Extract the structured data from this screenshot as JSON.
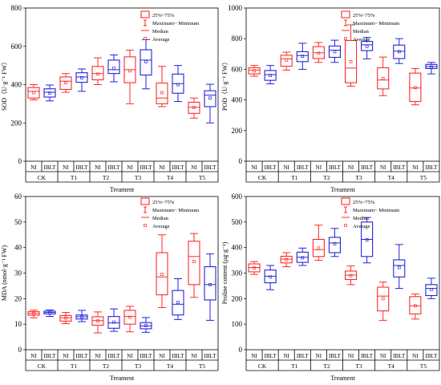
{
  "colors": {
    "NI": "#ff2a2a",
    "IBLT": "#2222dd"
  },
  "chart_data": [
    {
      "type": "box",
      "ylabel": "SOD（U·g⁻¹ FW）",
      "xlabel": "Treament",
      "ylim": [
        0,
        800
      ],
      "yticks": [
        0,
        200,
        400,
        600,
        800
      ],
      "groups": [
        "CK",
        "T1",
        "T2",
        "T3",
        "T4",
        "T5"
      ],
      "series_labels": [
        "NI",
        "IBLT"
      ],
      "legend": [
        "25%~75%",
        "Maximum~ Minimum",
        "Median",
        "Average"
      ],
      "legend_position": "top-left",
      "boxes": [
        {
          "group": "CK",
          "series": "NI",
          "min": 320,
          "q1": 330,
          "median": 365,
          "q3": 385,
          "max": 400,
          "mean": 358
        },
        {
          "group": "CK",
          "series": "IBLT",
          "min": 315,
          "q1": 335,
          "median": 360,
          "q3": 378,
          "max": 398,
          "mean": 356
        },
        {
          "group": "T1",
          "series": "NI",
          "min": 360,
          "q1": 375,
          "median": 418,
          "q3": 440,
          "max": 458,
          "mean": 410
        },
        {
          "group": "T1",
          "series": "IBLT",
          "min": 365,
          "q1": 412,
          "median": 440,
          "q3": 462,
          "max": 482,
          "mean": 436
        },
        {
          "group": "T2",
          "series": "NI",
          "min": 400,
          "q1": 425,
          "median": 458,
          "q3": 495,
          "max": 540,
          "mean": 455
        },
        {
          "group": "T2",
          "series": "IBLT",
          "min": 415,
          "q1": 458,
          "median": 478,
          "q3": 528,
          "max": 555,
          "mean": 485
        },
        {
          "group": "T3",
          "series": "NI",
          "min": 300,
          "q1": 410,
          "median": 478,
          "q3": 545,
          "max": 580,
          "mean": 472
        },
        {
          "group": "T3",
          "series": "IBLT",
          "min": 378,
          "q1": 450,
          "median": 528,
          "q3": 582,
          "max": 635,
          "mean": 520
        },
        {
          "group": "T4",
          "series": "NI",
          "min": 285,
          "q1": 300,
          "median": 330,
          "q3": 408,
          "max": 495,
          "mean": 358
        },
        {
          "group": "T4",
          "series": "IBLT",
          "min": 312,
          "q1": 355,
          "median": 405,
          "q3": 455,
          "max": 500,
          "mean": 400
        },
        {
          "group": "T5",
          "series": "NI",
          "min": 225,
          "q1": 250,
          "median": 282,
          "q3": 308,
          "max": 330,
          "mean": 280
        },
        {
          "group": "T5",
          "series": "IBLT",
          "min": 200,
          "q1": 285,
          "median": 345,
          "q3": 368,
          "max": 402,
          "mean": 330
        }
      ]
    },
    {
      "type": "box",
      "ylabel": "POD（U·g⁻¹ FW）",
      "xlabel": "Treament",
      "ylim": [
        0,
        1000
      ],
      "yticks": [
        0,
        200,
        400,
        600,
        800,
        1000
      ],
      "groups": [
        "CK",
        "T1",
        "T2",
        "T3",
        "T4",
        "T5"
      ],
      "series_labels": [
        "NI",
        "IBLT"
      ],
      "legend": [
        "25%~75%",
        "Maximum~ Minimum",
        "Median",
        "Average"
      ],
      "legend_position": "top-right",
      "boxes": [
        {
          "group": "CK",
          "series": "NI",
          "min": 555,
          "q1": 570,
          "median": 595,
          "q3": 610,
          "max": 625,
          "mean": 590
        },
        {
          "group": "CK",
          "series": "IBLT",
          "min": 505,
          "q1": 528,
          "median": 565,
          "q3": 592,
          "max": 625,
          "mean": 560
        },
        {
          "group": "T1",
          "series": "NI",
          "min": 595,
          "q1": 620,
          "median": 668,
          "q3": 692,
          "max": 712,
          "mean": 660
        },
        {
          "group": "T1",
          "series": "IBLT",
          "min": 600,
          "q1": 650,
          "median": 690,
          "q3": 715,
          "max": 770,
          "mean": 685
        },
        {
          "group": "T2",
          "series": "NI",
          "min": 645,
          "q1": 670,
          "median": 708,
          "q3": 748,
          "max": 775,
          "mean": 705
        },
        {
          "group": "T2",
          "series": "IBLT",
          "min": 645,
          "q1": 678,
          "median": 725,
          "q3": 752,
          "max": 790,
          "mean": 715
        },
        {
          "group": "T3",
          "series": "NI",
          "min": 490,
          "q1": 512,
          "median": 608,
          "q3": 788,
          "max": 890,
          "mean": 650
        },
        {
          "group": "T3",
          "series": "IBLT",
          "min": 668,
          "q1": 722,
          "median": 760,
          "q3": 782,
          "max": 808,
          "mean": 750
        },
        {
          "group": "T4",
          "series": "NI",
          "min": 428,
          "q1": 472,
          "median": 530,
          "q3": 610,
          "max": 680,
          "mean": 540
        },
        {
          "group": "T4",
          "series": "IBLT",
          "min": 638,
          "q1": 670,
          "median": 718,
          "q3": 758,
          "max": 800,
          "mean": 715
        },
        {
          "group": "T5",
          "series": "NI",
          "min": 368,
          "q1": 390,
          "median": 478,
          "q3": 575,
          "max": 605,
          "mean": 480
        },
        {
          "group": "T5",
          "series": "IBLT",
          "min": 570,
          "q1": 605,
          "median": 618,
          "q3": 632,
          "max": 645,
          "mean": 615
        }
      ]
    },
    {
      "type": "box",
      "ylabel": "MDA (nmol·g⁻¹ FW)",
      "xlabel": "Treament",
      "ylim": [
        0,
        60
      ],
      "yticks": [
        0,
        10,
        20,
        30,
        40,
        50,
        60
      ],
      "groups": [
        "CK",
        "T1",
        "T2",
        "T3",
        "T4",
        "T5"
      ],
      "series_labels": [
        "NI",
        "IBLT"
      ],
      "legend": [
        "25%~75%",
        "Maximum~ Minimum",
        "Median",
        "Average"
      ],
      "legend_position": "top-center",
      "boxes": [
        {
          "group": "CK",
          "series": "NI",
          "min": 12.5,
          "q1": 13.5,
          "median": 14.2,
          "q3": 14.9,
          "max": 15.5,
          "mean": 14.1
        },
        {
          "group": "CK",
          "series": "IBLT",
          "min": 13.0,
          "q1": 14.0,
          "median": 14.6,
          "q3": 15.1,
          "max": 15.6,
          "mean": 14.5
        },
        {
          "group": "T1",
          "series": "NI",
          "min": 10.2,
          "q1": 11.2,
          "median": 12.5,
          "q3": 13.4,
          "max": 14.6,
          "mean": 12.4
        },
        {
          "group": "T1",
          "series": "IBLT",
          "min": 11.0,
          "q1": 12.0,
          "median": 12.9,
          "q3": 13.6,
          "max": 15.4,
          "mean": 12.9
        },
        {
          "group": "T2",
          "series": "NI",
          "min": 6.6,
          "q1": 9.6,
          "median": 11.4,
          "q3": 12.9,
          "max": 14.8,
          "mean": 11.3
        },
        {
          "group": "T2",
          "series": "IBLT",
          "min": 7.2,
          "q1": 8.4,
          "median": 10.5,
          "q3": 13.0,
          "max": 16.0,
          "mean": 10.8
        },
        {
          "group": "T3",
          "series": "NI",
          "min": 7.0,
          "q1": 10.0,
          "median": 13.0,
          "q3": 15.4,
          "max": 17.0,
          "mean": 12.7
        },
        {
          "group": "T3",
          "series": "IBLT",
          "min": 6.8,
          "q1": 8.2,
          "median": 9.3,
          "q3": 10.6,
          "max": 12.6,
          "mean": 9.5
        },
        {
          "group": "T4",
          "series": "NI",
          "min": 16.5,
          "q1": 21.5,
          "median": 28.5,
          "q3": 38.0,
          "max": 45.0,
          "mean": 29.5
        },
        {
          "group": "T4",
          "series": "IBLT",
          "min": 11.8,
          "q1": 13.6,
          "median": 17.8,
          "q3": 23.2,
          "max": 27.8,
          "mean": 18.5
        },
        {
          "group": "T5",
          "series": "NI",
          "min": 20.5,
          "q1": 25.5,
          "median": 36.5,
          "q3": 42.5,
          "max": 45.5,
          "mean": 34.5
        },
        {
          "group": "T5",
          "series": "IBLT",
          "min": 11.5,
          "q1": 19.5,
          "median": 25.5,
          "q3": 32.5,
          "max": 37.5,
          "mean": 25.5
        }
      ]
    },
    {
      "type": "box",
      "ylabel": "Proline content (μg·g⁻¹)",
      "xlabel": "Treament",
      "ylim": [
        0,
        600
      ],
      "yticks": [
        0,
        100,
        200,
        300,
        400,
        500,
        600
      ],
      "groups": [
        "CK",
        "T1",
        "T2",
        "T3",
        "T4",
        "T5"
      ],
      "series_labels": [
        "NI",
        "IBLT"
      ],
      "legend": [
        "25%~75%",
        "Maximum~ Minimum",
        "Median",
        "Average"
      ],
      "legend_position": "top-center",
      "boxes": [
        {
          "group": "CK",
          "series": "NI",
          "min": 295,
          "q1": 305,
          "median": 322,
          "q3": 336,
          "max": 345,
          "mean": 320
        },
        {
          "group": "CK",
          "series": "IBLT",
          "min": 235,
          "q1": 262,
          "median": 288,
          "q3": 312,
          "max": 330,
          "mean": 285
        },
        {
          "group": "T1",
          "series": "NI",
          "min": 325,
          "q1": 340,
          "median": 355,
          "q3": 366,
          "max": 380,
          "mean": 353
        },
        {
          "group": "T1",
          "series": "IBLT",
          "min": 330,
          "q1": 342,
          "median": 362,
          "q3": 382,
          "max": 398,
          "mean": 360
        },
        {
          "group": "T2",
          "series": "NI",
          "min": 350,
          "q1": 365,
          "median": 392,
          "q3": 432,
          "max": 488,
          "mean": 398
        },
        {
          "group": "T2",
          "series": "IBLT",
          "min": 365,
          "q1": 380,
          "median": 418,
          "q3": 440,
          "max": 475,
          "mean": 415
        },
        {
          "group": "T3",
          "series": "NI",
          "min": 255,
          "q1": 275,
          "median": 292,
          "q3": 308,
          "max": 328,
          "mean": 290
        },
        {
          "group": "T3",
          "series": "IBLT",
          "min": 340,
          "q1": 365,
          "median": 432,
          "q3": 500,
          "max": 518,
          "mean": 430
        },
        {
          "group": "T4",
          "series": "NI",
          "min": 115,
          "q1": 152,
          "median": 210,
          "q3": 245,
          "max": 265,
          "mean": 200
        },
        {
          "group": "T4",
          "series": "IBLT",
          "min": 240,
          "q1": 285,
          "median": 330,
          "q3": 352,
          "max": 412,
          "mean": 322
        },
        {
          "group": "T5",
          "series": "NI",
          "min": 120,
          "q1": 140,
          "median": 172,
          "q3": 208,
          "max": 218,
          "mean": 172
        },
        {
          "group": "T5",
          "series": "IBLT",
          "min": 200,
          "q1": 212,
          "median": 240,
          "q3": 255,
          "max": 280,
          "mean": 236
        }
      ]
    }
  ]
}
